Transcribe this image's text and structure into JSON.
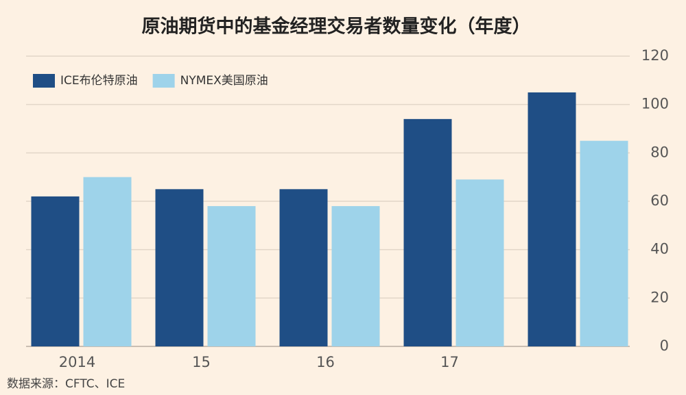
{
  "chart_data": {
    "type": "bar",
    "title": "原油期货中的基金经理交易者数量变化（年度）",
    "categories": [
      "2014",
      "15",
      "16",
      "17",
      null
    ],
    "series": [
      {
        "name": "ICE布伦特原油",
        "color": "#1f4e85",
        "values": [
          62,
          65,
          65,
          94,
          105
        ]
      },
      {
        "name": "NYMEX美国原油",
        "color": "#9ed3ea",
        "values": [
          70,
          58,
          58,
          69,
          85
        ]
      }
    ],
    "ylim": [
      0,
      120
    ],
    "yticks": [
      0,
      20,
      40,
      60,
      80,
      100,
      120
    ],
    "grid": true,
    "legend": "top-left",
    "source": "数据来源：CFTC、ICE"
  }
}
